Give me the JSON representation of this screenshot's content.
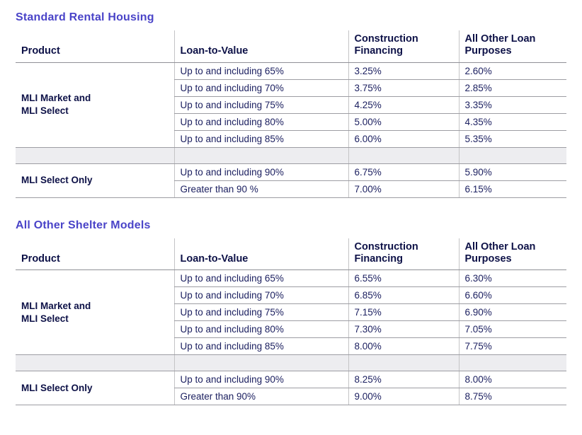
{
  "colors": {
    "title": "#4a44c8",
    "header_text": "#0d1147",
    "body_text": "#1d2161",
    "vertical_border": "#c4c4c6",
    "horizontal_border": "#9d9da3",
    "header_underline": "#8f9096",
    "spacer_row_fill": "#ededf0",
    "page_background": "#ffffff"
  },
  "tables": [
    {
      "title": "Standard Rental Housing",
      "headers": [
        "Product",
        "Loan-to-Value",
        "Construction Financing",
        "All Other Loan Purposes"
      ],
      "groups": [
        {
          "product": "MLI Market and\nMLI Select",
          "rows": [
            {
              "ltv": "Up to and including 65%",
              "cf": "3.25%",
              "aolp": "2.60%"
            },
            {
              "ltv": "Up to and including 70%",
              "cf": "3.75%",
              "aolp": "2.85%"
            },
            {
              "ltv": "Up to and including 75%",
              "cf": "4.25%",
              "aolp": "3.35%"
            },
            {
              "ltv": "Up to and including 80%",
              "cf": "5.00%",
              "aolp": "4.35%"
            },
            {
              "ltv": "Up to and including 85%",
              "cf": "6.00%",
              "aolp": "5.35%"
            }
          ]
        },
        {
          "product": "MLI Select Only",
          "rows": [
            {
              "ltv": "Up to and including 90%",
              "cf": "6.75%",
              "aolp": "5.90%"
            },
            {
              "ltv": "Greater than 90 %",
              "cf": "7.00%",
              "aolp": "6.15%"
            }
          ]
        }
      ]
    },
    {
      "title": "All Other Shelter Models",
      "headers": [
        "Product",
        "Loan-to-Value",
        "Construction Financing",
        "All Other Loan Purposes"
      ],
      "groups": [
        {
          "product": "MLI Market and\nMLI Select",
          "rows": [
            {
              "ltv": "Up to and including 65%",
              "cf": "6.55%",
              "aolp": "6.30%"
            },
            {
              "ltv": "Up to and including 70%",
              "cf": "6.85%",
              "aolp": "6.60%"
            },
            {
              "ltv": "Up to and including 75%",
              "cf": "7.15%",
              "aolp": "6.90%"
            },
            {
              "ltv": "Up to and including 80%",
              "cf": "7.30%",
              "aolp": "7.05%"
            },
            {
              "ltv": "Up to and including 85%",
              "cf": "8.00%",
              "aolp": "7.75%"
            }
          ]
        },
        {
          "product": "MLI Select Only",
          "rows": [
            {
              "ltv": "Up to and including 90%",
              "cf": "8.25%",
              "aolp": "8.00%"
            },
            {
              "ltv": "Greater than 90%",
              "cf": "9.00%",
              "aolp": "8.75%"
            }
          ]
        }
      ]
    }
  ]
}
